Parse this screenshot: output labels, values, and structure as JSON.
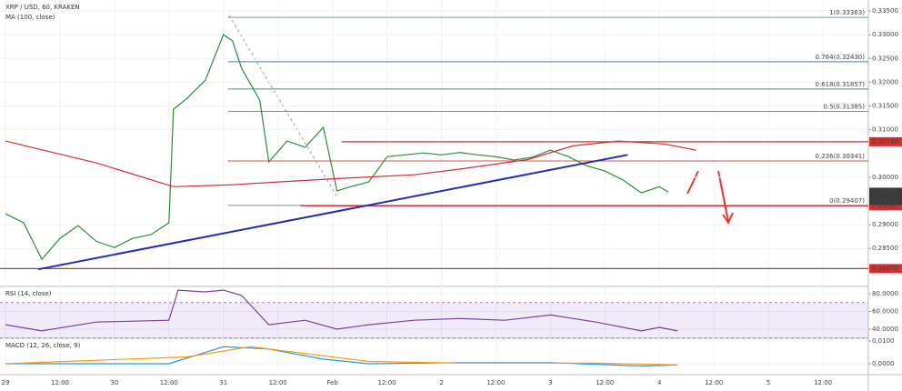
{
  "chart_data": [
    {
      "type": "line",
      "title": "XRP / USD, 60, KRAKEN",
      "xlim": [
        -1.2,
        190
      ],
      "ylim": [
        0.277,
        0.3373
      ],
      "grid": true,
      "xticks": [
        {
          "value": 0,
          "label": "29"
        },
        {
          "value": 12,
          "label": "12:00"
        },
        {
          "value": 24,
          "label": "30"
        },
        {
          "value": 36,
          "label": "12:00"
        },
        {
          "value": 48,
          "label": "31"
        },
        {
          "value": 60,
          "label": "12:00"
        },
        {
          "value": 72,
          "label": "Feb"
        },
        {
          "value": 84,
          "label": "12:00"
        },
        {
          "value": 96,
          "label": "2"
        },
        {
          "value": 108,
          "label": "12:00"
        },
        {
          "value": 120,
          "label": "3"
        },
        {
          "value": 132,
          "label": "12:00"
        },
        {
          "value": 144,
          "label": "4"
        },
        {
          "value": 156,
          "label": "12:00"
        },
        {
          "value": 168,
          "label": "5"
        },
        {
          "value": 180,
          "label": "12:00"
        }
      ],
      "yticks": [
        {
          "value": 0.335,
          "label": "0.33500"
        },
        {
          "value": 0.33,
          "label": "0.33000"
        },
        {
          "value": 0.325,
          "label": "0.32500"
        },
        {
          "value": 0.32,
          "label": "0.32000"
        },
        {
          "value": 0.315,
          "label": "0.31500"
        },
        {
          "value": 0.31,
          "label": "0.31000"
        },
        {
          "value": 0.3,
          "label": "0.30000"
        },
        {
          "value": 0.29,
          "label": "0.29000"
        },
        {
          "value": 0.285,
          "label": "0.28500"
        }
      ],
      "series": [
        {
          "color": "#2e8b3a",
          "x": [
            0,
            4,
            8,
            12,
            16,
            20,
            24,
            28,
            32,
            36,
            37,
            40,
            44,
            48,
            50,
            52,
            56,
            58,
            62,
            66,
            70,
            73,
            76,
            80,
            84,
            88,
            92,
            96,
            100,
            104,
            108,
            112,
            116,
            120,
            124,
            128,
            132,
            136,
            140,
            144,
            146
          ],
          "values": [
            0.2923,
            0.2904,
            0.2827,
            0.2871,
            0.2898,
            0.2865,
            0.2852,
            0.2871,
            0.2879,
            0.2904,
            0.3143,
            0.3166,
            0.3204,
            0.33,
            0.3287,
            0.3229,
            0.3162,
            0.3032,
            0.3076,
            0.3063,
            0.3105,
            0.2971,
            0.298,
            0.299,
            0.3043,
            0.3047,
            0.3051,
            0.3047,
            0.3052,
            0.3047,
            0.3043,
            0.3036,
            0.3042,
            0.3057,
            0.3043,
            0.3024,
            0.3013,
            0.2994,
            0.2967,
            0.298,
            0.29683
          ]
        },
        {
          "name": "MA (100, close)",
          "color": "#d32f2f",
          "x": [
            0,
            20,
            37,
            50,
            60,
            75,
            90,
            100,
            115,
            125,
            135,
            145,
            152
          ],
          "values": [
            0.3076,
            0.303,
            0.298,
            0.2984,
            0.299,
            0.2998,
            0.3005,
            0.3017,
            0.3037,
            0.3066,
            0.3076,
            0.307,
            0.3057
          ]
        },
        {
          "color": "#1f2fb5",
          "x": [
            7.2,
            137
          ],
          "values": [
            0.2806,
            0.3047
          ]
        }
      ],
      "fib_levels": [
        {
          "value": 0.33363,
          "label": "1(0.33363)",
          "color": "#4aa3df",
          "start": 49
        },
        {
          "value": 0.3243,
          "label": "0.764(0.32430)",
          "color": "#3a7fc1",
          "start": 49
        },
        {
          "value": 0.31857,
          "label": "0.618(0.31857)",
          "color": "#2a9d7f",
          "start": 49
        },
        {
          "value": 0.31385,
          "label": "0.5(0.31385)",
          "color": "#888888",
          "start": 49
        },
        {
          "value": 0.30341,
          "label": "0.236(0.30341)",
          "color": "#d9534f",
          "start": 49
        },
        {
          "value": 0.29407,
          "label": "0(0.29407)",
          "color": "#888888",
          "start": 49
        }
      ],
      "levels": [
        {
          "value": 0.30746,
          "label": "0.30746",
          "color": "#d32f2f",
          "start": 74
        },
        {
          "value": 0.29397,
          "label": "0.29397",
          "color": "#d32f2f",
          "start": 65
        },
        {
          "value": 0.28075,
          "label": "0.28075",
          "color": "#d32f2f",
          "start": -1.2
        }
      ],
      "last_price": {
        "value": 0.29683,
        "label": "0.29683",
        "countdown": "0:49:14"
      }
    },
    {
      "type": "line",
      "title": "RSI (14, close)",
      "ylim": [
        29.7,
        88.2
      ],
      "band": [
        30,
        70
      ],
      "yticks": [
        {
          "value": 80,
          "label": "80.0000"
        },
        {
          "value": 60,
          "label": "60.0000"
        },
        {
          "value": 40,
          "label": "40.0000"
        }
      ],
      "series": [
        {
          "color": "#7b3fa0",
          "x": [
            0,
            8,
            20,
            36,
            38,
            44,
            48,
            52,
            58,
            66,
            73,
            80,
            90,
            100,
            110,
            120,
            130,
            140,
            144,
            148
          ],
          "values": [
            45,
            38,
            48,
            50,
            84,
            82,
            84,
            78,
            45,
            50,
            40,
            45,
            50,
            52,
            50,
            56,
            48,
            38,
            42,
            38
          ]
        }
      ]
    },
    {
      "type": "line",
      "title": "MACD (12, 26, close, 9)",
      "ylim": [
        -0.0048,
        0.0112
      ],
      "yticks": [
        {
          "value": 0.01,
          "label": "0.0100"
        },
        {
          "value": 0,
          "label": "0.0000"
        }
      ],
      "series": [
        {
          "color": "#2196f3",
          "x": [
            0,
            36,
            48,
            58,
            70,
            80,
            100,
            120,
            140,
            148
          ],
          "values": [
            0,
            0,
            0.0075,
            0.0065,
            0.002,
            0,
            0.0005,
            0.0005,
            -0.001,
            -0.0005
          ]
        },
        {
          "color": "#ff9800",
          "x": [
            0,
            40,
            54,
            66,
            80,
            100,
            130,
            148
          ],
          "values": [
            0,
            0.003,
            0.0075,
            0.0045,
            0.001,
            0.0003,
            0.0003,
            -0.0005
          ]
        }
      ]
    }
  ]
}
